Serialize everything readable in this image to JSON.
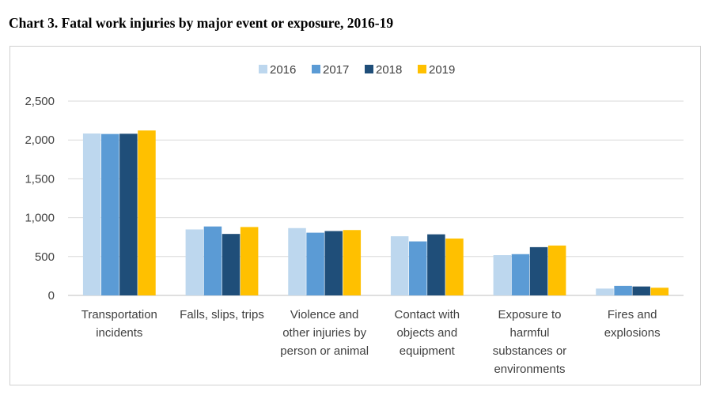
{
  "title": "Chart 3. Fatal work injuries by major event or exposure, 2016-19",
  "chart_data": {
    "type": "bar",
    "title": "",
    "xlabel": "",
    "ylabel": "",
    "ylim": [
      0,
      2500
    ],
    "yticks": [
      "0",
      "500",
      "1,000",
      "1,500",
      "2,000",
      "2,500"
    ],
    "grid": true,
    "legend_position": "top",
    "categories": [
      [
        "Transportation",
        "incidents"
      ],
      [
        "Falls, slips, trips"
      ],
      [
        "Violence and",
        "other injuries by",
        "person or animal"
      ],
      [
        "Contact with",
        "objects and",
        "equipment"
      ],
      [
        "Exposure to",
        "harmful",
        "substances or",
        "environments"
      ],
      [
        "Fires and",
        "explosions"
      ]
    ],
    "series": [
      {
        "name": "2016",
        "color": "#bdd7ee",
        "values": [
          2083,
          849,
          866,
          761,
          518,
          88
        ]
      },
      {
        "name": "2017",
        "color": "#5b9bd5",
        "values": [
          2077,
          887,
          807,
          695,
          531,
          123
        ]
      },
      {
        "name": "2018",
        "color": "#1f4e79",
        "values": [
          2080,
          791,
          828,
          786,
          621,
          115
        ]
      },
      {
        "name": "2019",
        "color": "#ffc000",
        "values": [
          2122,
          880,
          841,
          732,
          642,
          99
        ]
      }
    ]
  }
}
